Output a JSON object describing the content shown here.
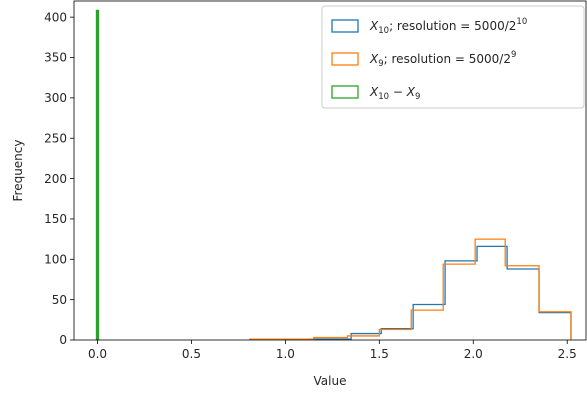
{
  "chart_data": {
    "type": "histogram",
    "title": "",
    "xlabel": "Value",
    "ylabel": "Frequency",
    "xlim": [
      -0.125,
      2.6
    ],
    "ylim": [
      0,
      420
    ],
    "x_ticks": [
      "0.0",
      "0.5",
      "1.0",
      "1.5",
      "2.0",
      "2.5"
    ],
    "y_ticks": [
      "0",
      "50",
      "100",
      "150",
      "200",
      "250",
      "300",
      "350",
      "400"
    ],
    "legend_position": "top-right",
    "grid": false,
    "series": [
      {
        "name": "X_10; resolution = 5000/2^10",
        "legend": {
          "pre": "X",
          "sub": "10",
          "mid": "; resolution = 5000/2",
          "sup": "10"
        },
        "color": "#1f77b4",
        "histtype": "step",
        "bin_edges": [
          1.0,
          1.17,
          1.35,
          1.51,
          1.68,
          1.85,
          2.02,
          2.18,
          2.35,
          2.52
        ],
        "counts": [
          1,
          1,
          8,
          14,
          44,
          98,
          116,
          88,
          34
        ]
      },
      {
        "name": "X_9; resolution = 5000/2^9",
        "legend": {
          "pre": "X",
          "sub": "9",
          "mid": "; resolution = 5000/2",
          "sup": "9"
        },
        "color": "#ff7f0e",
        "histtype": "step",
        "bin_edges": [
          0.81,
          0.98,
          1.15,
          1.33,
          1.5,
          1.67,
          1.84,
          2.01,
          2.17,
          2.35,
          2.52
        ],
        "counts": [
          1,
          1,
          3,
          5,
          13,
          37,
          94,
          125,
          92,
          35
        ]
      },
      {
        "name": "X_10 − X_9",
        "legend": {
          "pre": "X",
          "sub": "10",
          "mid": " − X",
          "sub2": "9"
        },
        "color": "#2ca02c",
        "histtype": "step",
        "bin_edges": [
          -0.004,
          0.004
        ],
        "counts": [
          408
        ]
      }
    ]
  }
}
